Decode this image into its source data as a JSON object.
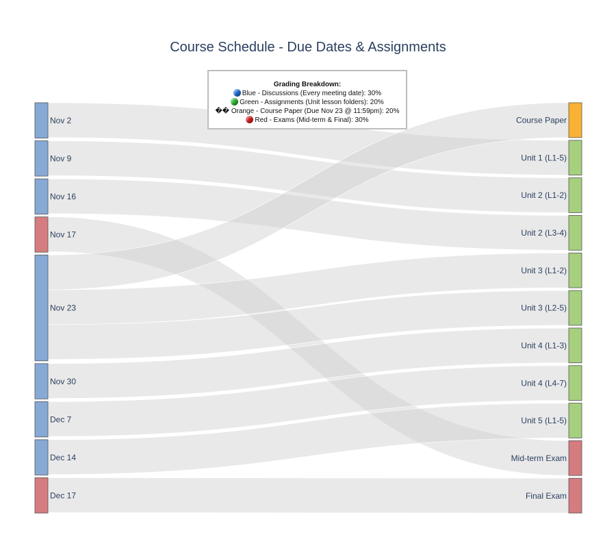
{
  "title": "Course Schedule - Due Dates & Assignments",
  "legend": {
    "title": "Grading Breakdown:",
    "items": [
      {
        "text": "Blue - Discussions (Every meeting date): 30%",
        "marker": "blue-circle",
        "color": "#1f6fd6"
      },
      {
        "text": "Green - Assignments (Unit lesson folders): 20%",
        "marker": "green-circle",
        "color": "#2ab52a"
      },
      {
        "text": "Orange - Course Paper (Due Nov 23 @ 11:59pm): 20%",
        "marker": "unrendered-glyph",
        "glyph": "��"
      },
      {
        "text": "Red - Exams (Mid-term & Final): 30%",
        "marker": "red-circle",
        "color": "#d42020"
      }
    ]
  },
  "colors": {
    "discussion": "#86a9d6",
    "assignment": "#a6cf7e",
    "paper": "#f9b233",
    "exam": "#d47c7f",
    "link": "#cfcfcf",
    "node_border": "#555555"
  },
  "chart_data": {
    "type": "sankey",
    "sources": [
      {
        "label": "Nov 2",
        "category": "discussion"
      },
      {
        "label": "Nov 9",
        "category": "discussion"
      },
      {
        "label": "Nov 16",
        "category": "discussion"
      },
      {
        "label": "Nov 17",
        "category": "exam"
      },
      {
        "label": "Nov 23",
        "category": "discussion"
      },
      {
        "label": "Nov 30",
        "category": "discussion"
      },
      {
        "label": "Dec 7",
        "category": "discussion"
      },
      {
        "label": "Dec 14",
        "category": "discussion"
      },
      {
        "label": "Dec 17",
        "category": "exam"
      }
    ],
    "targets": [
      {
        "label": "Course Paper",
        "category": "paper"
      },
      {
        "label": "Unit 1 (L1-5)",
        "category": "assignment"
      },
      {
        "label": "Unit 2 (L1-2)",
        "category": "assignment"
      },
      {
        "label": "Unit 2 (L3-4)",
        "category": "assignment"
      },
      {
        "label": "Unit 3 (L1-2)",
        "category": "assignment"
      },
      {
        "label": "Unit 3 (L2-5)",
        "category": "assignment"
      },
      {
        "label": "Unit 4 (L1-3)",
        "category": "assignment"
      },
      {
        "label": "Unit 4 (L4-7)",
        "category": "assignment"
      },
      {
        "label": "Unit 5 (L1-5)",
        "category": "assignment"
      },
      {
        "label": "Mid-term Exam",
        "category": "exam"
      },
      {
        "label": "Final Exam",
        "category": "exam"
      }
    ],
    "links": [
      {
        "source": "Nov 2",
        "target": "Unit 1 (L1-5)",
        "value": 1
      },
      {
        "source": "Nov 9",
        "target": "Unit 2 (L1-2)",
        "value": 1
      },
      {
        "source": "Nov 16",
        "target": "Unit 2 (L3-4)",
        "value": 1
      },
      {
        "source": "Nov 17",
        "target": "Mid-term Exam",
        "value": 1
      },
      {
        "source": "Nov 23",
        "target": "Course Paper",
        "value": 1
      },
      {
        "source": "Nov 23",
        "target": "Unit 3 (L1-2)",
        "value": 1
      },
      {
        "source": "Nov 23",
        "target": "Unit 3 (L2-5)",
        "value": 1
      },
      {
        "source": "Nov 30",
        "target": "Unit 4 (L1-3)",
        "value": 1
      },
      {
        "source": "Dec 7",
        "target": "Unit 4 (L4-7)",
        "value": 1
      },
      {
        "source": "Dec 14",
        "target": "Unit 5 (L1-5)",
        "value": 1
      },
      {
        "source": "Dec 17",
        "target": "Final Exam",
        "value": 1
      }
    ]
  }
}
